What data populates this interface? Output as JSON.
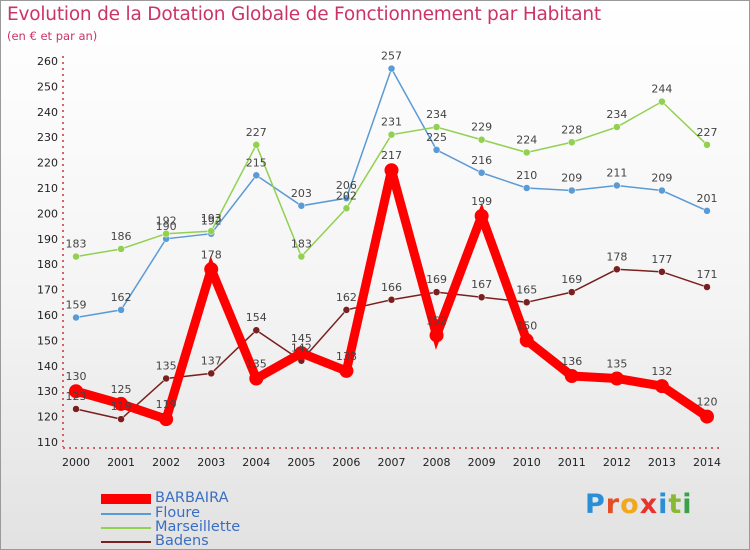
{
  "title": "Evolution de la Dotation Globale de Fonctionnement par Habitant",
  "subtitle": "(en € et par an)",
  "logo": "Proxiti",
  "chart_data": {
    "type": "line",
    "title": "Evolution de la Dotation Globale de Fonctionnement par Habitant",
    "subtitle": "(en € et par an)",
    "x": [
      "2000",
      "2001",
      "2002",
      "2003",
      "2004",
      "2005",
      "2006",
      "2007",
      "2008",
      "2009",
      "2010",
      "2011",
      "2012",
      "2013",
      "2014"
    ],
    "ylim": [
      110,
      260
    ],
    "yticks": [
      110,
      120,
      130,
      140,
      150,
      160,
      170,
      180,
      190,
      200,
      210,
      220,
      230,
      240,
      250,
      260
    ],
    "grid": false,
    "legend_position": "bottom-left",
    "series": [
      {
        "name": "BARBAIRA",
        "color": "#ff0000",
        "values": [
          130,
          125,
          119,
          178,
          135,
          145,
          138,
          217,
          152,
          199,
          150,
          136,
          135,
          132,
          120
        ],
        "labels": [
          "130",
          "125",
          "119",
          "178",
          "135",
          "145",
          "138",
          "217",
          "152",
          "199",
          "150",
          "136",
          "135",
          "132",
          "120"
        ]
      },
      {
        "name": "Floure",
        "color": "#5b9bd5",
        "values": [
          159,
          162,
          190,
          192,
          215,
          203,
          206,
          257,
          225,
          216,
          210,
          209,
          211,
          209,
          201
        ],
        "labels": [
          "159",
          "162",
          "190",
          "192",
          "215",
          "203",
          "206",
          "257",
          "225",
          "216",
          "210",
          "209",
          "211",
          "209",
          "201"
        ]
      },
      {
        "name": "Marseillette",
        "color": "#92d050",
        "values": [
          183,
          186,
          192,
          193,
          227,
          183,
          202,
          231,
          234,
          229,
          224,
          228,
          234,
          244,
          227
        ],
        "labels": [
          "183",
          "186",
          "192",
          "193",
          "227",
          "183",
          "202",
          "231",
          "234",
          "229",
          "224",
          "228",
          "234",
          "244",
          "227"
        ]
      },
      {
        "name": "Badens",
        "color": "#7a1f1f",
        "values": [
          123,
          119,
          135,
          137,
          154,
          142,
          162,
          166,
          169,
          167,
          165,
          169,
          178,
          177,
          171
        ],
        "labels": [
          "123",
          "119",
          "135",
          "137",
          "154",
          "142",
          "162",
          "166",
          "169",
          "167",
          "165",
          "169",
          "178",
          "177",
          "171"
        ]
      }
    ]
  },
  "legend": [
    {
      "name": "BARBAIRA",
      "color": "#ff0000"
    },
    {
      "name": "Floure",
      "color": "#5b9bd5"
    },
    {
      "name": "Marseillette",
      "color": "#92d050"
    },
    {
      "name": "Badens",
      "color": "#7a1f1f"
    }
  ]
}
